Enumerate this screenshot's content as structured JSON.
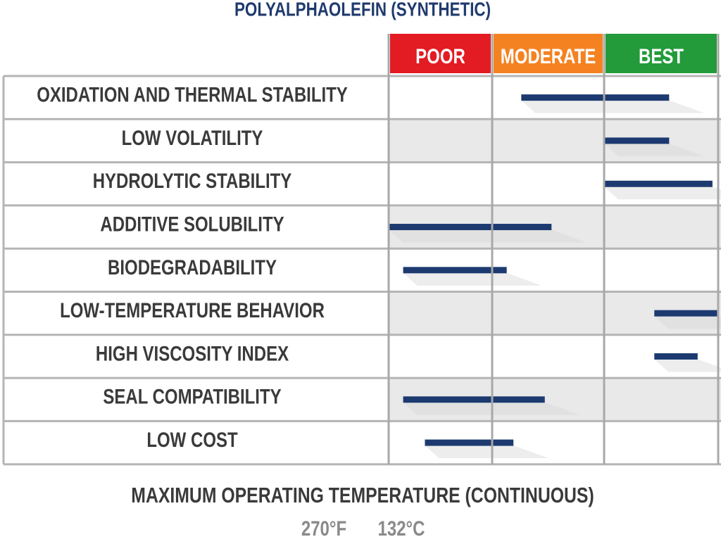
{
  "chart_data": {
    "type": "range",
    "title": "POLYALPHAOLEFIN (SYNTHETIC)",
    "bands": [
      {
        "label": "POOR",
        "color": "#e31b23"
      },
      {
        "label": "MODERATE",
        "color": "#f58220"
      },
      {
        "label": "BEST",
        "color": "#239b3a"
      }
    ],
    "xlim": [
      0,
      3
    ],
    "categories": [
      "OXIDATION AND THERMAL STABILITY",
      "LOW VOLATILITY",
      "HYDROLYTIC STABILITY",
      "ADDITIVE SOLUBILITY",
      "BIODEGRADABILITY",
      "LOW-TEMPERATURE BEHAVIOR",
      "HIGH VISCOSITY INDEX",
      "SEAL COMPATIBILITY",
      "LOW COST"
    ],
    "values": [
      [
        1.26,
        2.57
      ],
      [
        2.0,
        2.57
      ],
      [
        2.0,
        2.95
      ],
      [
        0.0,
        1.53
      ],
      [
        0.14,
        1.13
      ],
      [
        2.44,
        2.99
      ],
      [
        2.44,
        2.82
      ],
      [
        0.14,
        1.47
      ],
      [
        0.35,
        1.19
      ]
    ],
    "color": "#1c3a70"
  },
  "footer": {
    "title": "MAXIMUM OPERATING TEMPERATURE (CONTINUOUS)",
    "fahrenheit": "270°F",
    "celsius": "132°C"
  }
}
